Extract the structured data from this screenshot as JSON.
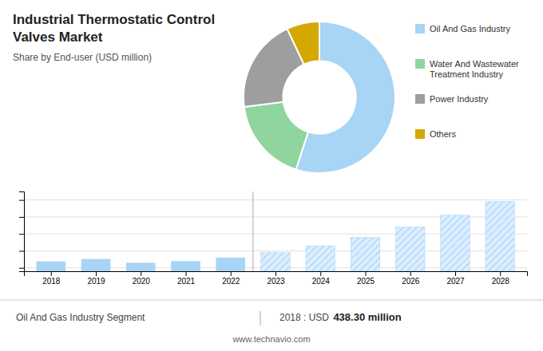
{
  "chart_data": [
    {
      "type": "pie",
      "title": "Industrial Thermostatic Control\nValves Market",
      "subtitle": "Share by End-user (USD million)",
      "categories": [
        "Oil And Gas Industry",
        "Water And Wastewater\nTreatment Industry",
        "Power Industry",
        "Others"
      ],
      "values": [
        55,
        18,
        20,
        7
      ],
      "colors": [
        "#a8d4f5",
        "#90d4a0",
        "#9e9e9e",
        "#d4a800"
      ],
      "legend": "right"
    },
    {
      "type": "bar",
      "x": [
        2018,
        2019,
        2020,
        2021,
        2022,
        2023,
        2024,
        2025,
        2026,
        2027,
        2028
      ],
      "values": [
        438.3,
        452,
        430,
        440,
        460,
        490,
        530,
        580,
        640,
        710,
        790
      ],
      "colors": [
        "#a8d4f5",
        "#a8d4f5",
        "#a8d4f5",
        "#a8d4f5",
        "#a8d4f5",
        "#ddeeff",
        "#ddeeff",
        "#ddeeff",
        "#ddeeff",
        "#ddeeff",
        "#ddeeff"
      ],
      "xlim": [
        2017.4,
        2028.6
      ],
      "xticks": [
        2018,
        2019,
        2020,
        2021,
        2022,
        2023,
        2024,
        2025,
        2026,
        2027,
        2028
      ],
      "ylim": [
        380,
        850
      ],
      "yticks": [
        400,
        500,
        600,
        700,
        800
      ],
      "grid": true,
      "tick_labels": "x",
      "annotations": [
        "Oil And Gas Industry Segment",
        "2018 : USD ",
        "438.30 million",
        "www.technavio.com"
      ]
    }
  ]
}
